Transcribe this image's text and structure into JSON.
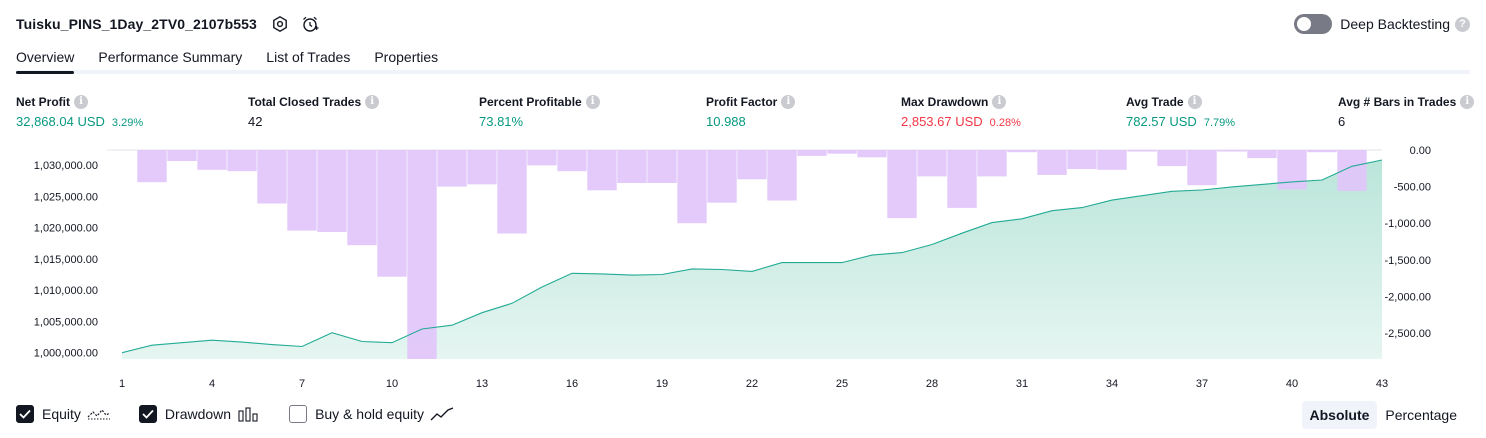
{
  "header": {
    "title": "Tuisku_PINS_1Day_2TV0_2107b553",
    "settings_icon": "settings-hex-icon",
    "alert_icon": "add-alert-icon"
  },
  "deep_backtesting": {
    "label": "Deep Backtesting",
    "enabled": false,
    "help": "?"
  },
  "tabs": [
    {
      "label": "Overview",
      "active": true
    },
    {
      "label": "Performance Summary",
      "active": false
    },
    {
      "label": "List of Trades",
      "active": false
    },
    {
      "label": "Properties",
      "active": false
    }
  ],
  "metrics": {
    "net_profit": {
      "label": "Net Profit",
      "value": "32,868.04 USD",
      "pct": "3.29%"
    },
    "total_closed_trades": {
      "label": "Total Closed Trades",
      "value": "42"
    },
    "percent_profitable": {
      "label": "Percent Profitable",
      "value": "73.81%"
    },
    "profit_factor": {
      "label": "Profit Factor",
      "value": "10.988"
    },
    "max_drawdown": {
      "label": "Max Drawdown",
      "value": "2,853.67 USD",
      "pct": "0.28%"
    },
    "avg_trade": {
      "label": "Avg Trade",
      "value": "782.57 USD",
      "pct": "7.79%"
    },
    "avg_bars": {
      "label": "Avg # Bars in Trades",
      "value": "6"
    },
    "info_glyph": "i"
  },
  "chart_data": {
    "type": "area",
    "x": [
      1,
      2,
      3,
      4,
      5,
      6,
      7,
      8,
      9,
      10,
      11,
      12,
      13,
      14,
      15,
      16,
      17,
      18,
      19,
      20,
      21,
      22,
      23,
      24,
      25,
      26,
      27,
      28,
      29,
      30,
      31,
      32,
      33,
      34,
      35,
      36,
      37,
      38,
      39,
      40,
      41,
      42,
      43
    ],
    "x_tick_labels": [
      "1",
      "4",
      "7",
      "10",
      "13",
      "16",
      "19",
      "22",
      "25",
      "28",
      "31",
      "34",
      "37",
      "40",
      "43"
    ],
    "left_axis": {
      "ylim": [
        999000,
        1032400
      ],
      "tick_labels": [
        "1,000,000.00",
        "1,005,000.00",
        "1,010,000.00",
        "1,015,000.00",
        "1,020,000.00",
        "1,025,000.00",
        "1,030,000.00"
      ],
      "tick_values": [
        1000000,
        1005000,
        1010000,
        1015000,
        1020000,
        1025000,
        1030000
      ]
    },
    "right_axis": {
      "ylim": [
        -2853.67,
        0
      ],
      "tick_labels": [
        "0.00",
        "-500.00",
        "-1,000.00",
        "-1,500.00",
        "-2,000.00",
        "-2,500.00"
      ],
      "tick_values": [
        0,
        -500,
        -1000,
        -1500,
        -2000,
        -2500
      ]
    },
    "series": [
      {
        "name": "Equity",
        "axis": "left",
        "values": [
          1000000,
          1001200,
          1001600,
          1002000,
          1001700,
          1001300,
          1001000,
          1003200,
          1001800,
          1001600,
          1003800,
          1004400,
          1006400,
          1007900,
          1010500,
          1012700,
          1012600,
          1012400,
          1012500,
          1013400,
          1013300,
          1013000,
          1014400,
          1014400,
          1014400,
          1015600,
          1016000,
          1017300,
          1019100,
          1020800,
          1021400,
          1022700,
          1023200,
          1024400,
          1025100,
          1025800,
          1026000,
          1026500,
          1026900,
          1027300,
          1027600,
          1029800,
          1030800
        ]
      },
      {
        "name": "Drawdown",
        "axis": "right",
        "values": [
          0,
          -440,
          -150,
          -270,
          -290,
          -730,
          -1100,
          -1120,
          -1300,
          -1730,
          -2853.67,
          -500,
          -470,
          -1140,
          -210,
          -290,
          -550,
          -450,
          -450,
          -1000,
          -720,
          -400,
          -690,
          -80,
          -50,
          -100,
          -930,
          -360,
          -790,
          -360,
          -30,
          -340,
          -260,
          -270,
          -20,
          -220,
          -480,
          -20,
          -110,
          -540,
          -30,
          -560,
          0
        ],
        "color": "#e1c4fb"
      }
    ],
    "legend": [
      {
        "name": "Equity",
        "checked": true,
        "icon": "equity-line-icon"
      },
      {
        "name": "Drawdown",
        "checked": true,
        "icon": "drawdown-bars-icon"
      },
      {
        "name": "Buy & hold equity",
        "checked": false,
        "icon": "buy-hold-line-icon"
      }
    ],
    "colors": {
      "equity_line": "#22ab94",
      "equity_fill": "#b7e4d8",
      "drawdown": "#e1c4fb",
      "overlap": "#b7b8dd"
    }
  },
  "modes": [
    {
      "label": "Absolute",
      "active": true
    },
    {
      "label": "Percentage",
      "active": false
    }
  ]
}
